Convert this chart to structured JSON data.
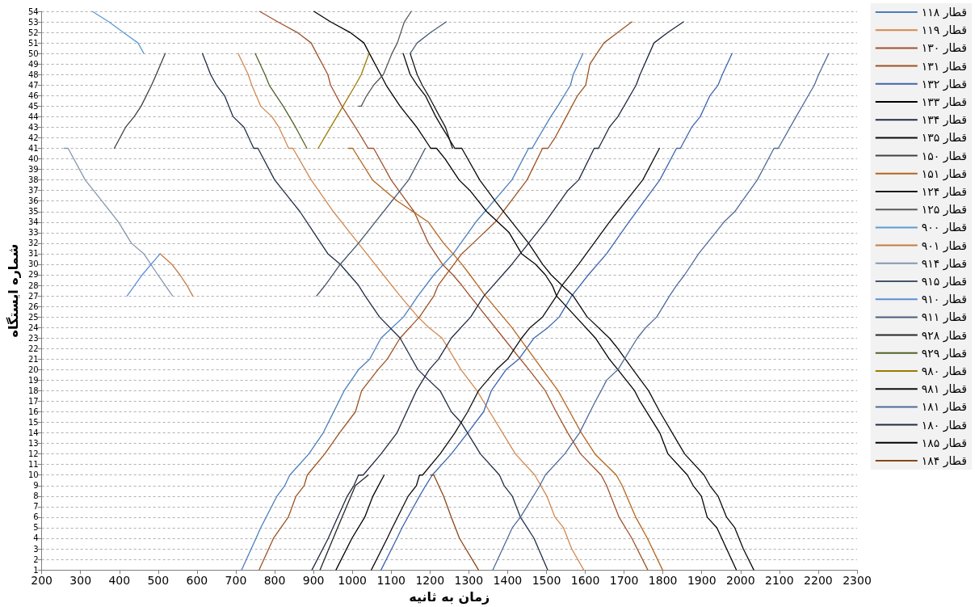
{
  "chart_data": {
    "type": "line",
    "xlabel": "زمان به ثانیه",
    "ylabel": "شماره ایستگاه",
    "xlim": [
      200,
      2300
    ],
    "xticks": [
      200,
      300,
      400,
      500,
      600,
      700,
      800,
      900,
      1000,
      1100,
      1200,
      1300,
      1400,
      1500,
      1600,
      1700,
      1800,
      1900,
      2000,
      2100,
      2200,
      2300
    ],
    "ylim": [
      1,
      54
    ],
    "yticks": [
      1,
      2,
      3,
      4,
      5,
      6,
      7,
      8,
      9,
      10,
      11,
      12,
      13,
      14,
      15,
      16,
      17,
      18,
      19,
      20,
      21,
      22,
      23,
      24,
      25,
      26,
      27,
      28,
      29,
      30,
      31,
      32,
      33,
      34,
      35,
      36,
      37,
      38,
      39,
      40,
      41,
      42,
      43,
      44,
      45,
      46,
      47,
      48,
      49,
      50,
      51,
      52,
      53,
      54
    ],
    "grid": "y",
    "legend": "right",
    "marker": "none",
    "line_style": "solid",
    "series": [
      {
        "name": "قطار ۱۱۸",
        "color": "#4a7ebb",
        "x": [
          715,
          752,
          764,
          806,
          826,
          839,
          888,
          925,
          979,
          1016,
          1045,
          1074,
          1132,
          1169,
          1210,
          1260,
          1318,
          1411,
          1454,
          1463,
          1511,
          1529,
          1562,
          1569,
          1594
        ],
        "values": [
          1,
          4,
          5,
          8,
          9,
          10,
          12,
          14,
          18,
          20,
          21,
          23,
          25,
          27,
          29,
          31,
          34,
          38,
          41,
          41,
          44,
          45,
          47,
          48,
          50
        ]
      },
      {
        "name": "قطار ۱۱۹",
        "color": "#d2884f",
        "x": [
          706,
          732,
          741,
          764,
          793,
          811,
          836,
          847,
          894,
          951,
          994,
          1037,
          1080,
          1123,
          1169,
          1197,
          1231,
          1280,
          1321,
          1354,
          1387,
          1420,
          1470,
          1501,
          1522,
          1544,
          1565,
          1596
        ],
        "values": [
          50,
          48,
          47,
          45,
          44,
          43,
          41,
          41,
          38,
          35,
          33,
          31,
          29,
          27,
          25,
          24,
          23,
          20,
          18,
          16,
          14,
          12,
          10,
          8,
          6,
          5,
          3,
          1
        ]
      },
      {
        "name": "قطار ۱۳۰",
        "color": "#a0522d",
        "x": [
          761,
          808,
          858,
          894,
          908,
          937,
          944,
          973,
          1008,
          1041,
          1055,
          1100,
          1159,
          1196,
          1232,
          1259,
          1282,
          1303,
          1411,
          1455,
          1497,
          1525,
          1555,
          1588,
          1641,
          1655,
          1687,
          1720,
          1761
        ],
        "values": [
          54,
          53,
          52,
          51,
          50,
          48,
          47,
          45,
          43,
          41,
          41,
          38,
          35,
          32,
          30,
          29,
          28,
          27,
          22,
          20,
          18,
          16,
          14,
          12,
          10,
          9,
          6,
          4,
          1
        ]
      },
      {
        "name": "قطار ۱۳۱",
        "color": "#9c5221",
        "x": [
          760,
          797,
          835,
          855,
          876,
          884,
          929,
          967,
          1008,
          1024,
          1066,
          1090,
          1123,
          1173,
          1210,
          1221,
          1282,
          1311,
          1368,
          1450,
          1490,
          1504,
          1522,
          1551,
          1580,
          1601,
          1612,
          1648,
          1684,
          1720
        ],
        "values": [
          1,
          4,
          6,
          8,
          9,
          10,
          12,
          14,
          16,
          18,
          20,
          21,
          23,
          25,
          27,
          28,
          31,
          32,
          34,
          38,
          41,
          41,
          42,
          44,
          46,
          47,
          49,
          51,
          52,
          53
        ]
      },
      {
        "name": "قطار ۱۳۲",
        "color": "#3c64ae",
        "x": [
          1074,
          1115,
          1128,
          1173,
          1189,
          1206,
          1255,
          1297,
          1338,
          1358,
          1396,
          1429,
          1468,
          1504,
          1533,
          1565,
          1608,
          1655,
          1712,
          1792,
          1835,
          1845,
          1874,
          1896,
          1921,
          1942,
          1953,
          1978
        ],
        "values": [
          1,
          4,
          5,
          8,
          9,
          10,
          12,
          14,
          16,
          18,
          20,
          21,
          23,
          24,
          25,
          27,
          29,
          31,
          34,
          38,
          41,
          41,
          43,
          44,
          46,
          47,
          48,
          50
        ]
      },
      {
        "name": "قطار ۱۳۳",
        "color": "#000000",
        "x": [
          901,
          944,
          994,
          1030,
          1044,
          1073,
          1087,
          1123,
          1166,
          1202,
          1217,
          1239,
          1275,
          1303,
          1346,
          1404,
          1436,
          1472,
          1497,
          1515,
          1526,
          1576,
          1626,
          1662,
          1684,
          1727,
          1741,
          1792,
          1813,
          1863,
          1878,
          1899,
          1914,
          1939,
          1964,
          1989
        ],
        "values": [
          54,
          53,
          52,
          51,
          50,
          48,
          47,
          45,
          43,
          41,
          41,
          40,
          38,
          37,
          35,
          33,
          31,
          30,
          29,
          28,
          27,
          25,
          23,
          21,
          20,
          18,
          17,
          14,
          12,
          10,
          9,
          8,
          6,
          5,
          3,
          1
        ]
      },
      {
        "name": "قطار ۱۳۴",
        "color": "#1f2d46",
        "x": [
          614,
          635,
          650,
          671,
          693,
          721,
          746,
          757,
          800,
          865,
          901,
          937,
          969,
          1016,
          1033,
          1070,
          1123,
          1169,
          1197,
          1226,
          1255,
          1280,
          1330,
          1379,
          1391,
          1412,
          1433,
          1468,
          1503
        ],
        "values": [
          50,
          48,
          47,
          46,
          44,
          43,
          41,
          41,
          38,
          35,
          33,
          31,
          30,
          28,
          27,
          25,
          23,
          20,
          19,
          18,
          16,
          15,
          12,
          10,
          9,
          8,
          6,
          4,
          1
        ]
      },
      {
        "name": "قطار ۱۳۵",
        "color": "#0a0a0a",
        "x": [
          1131,
          1149,
          1167,
          1188,
          1215,
          1231,
          1264,
          1282,
          1328,
          1368,
          1411,
          1454,
          1490,
          1512,
          1540,
          1569,
          1605,
          1662,
          1684,
          1723,
          1763,
          1792,
          1824,
          1856,
          1906,
          1921,
          1942,
          1964,
          1985,
          2007,
          2034
        ],
        "values": [
          50,
          48,
          47,
          46,
          44,
          43,
          41,
          41,
          38,
          36,
          34,
          32,
          30,
          29,
          28,
          27,
          25,
          23,
          22,
          20,
          18,
          16,
          14,
          12,
          10,
          9,
          8,
          6,
          5,
          3,
          1
        ]
      },
      {
        "name": "قطار ۱۵۰",
        "color": "#404040",
        "x": [
          387,
          416,
          438,
          456,
          483,
          495,
          518
        ],
        "values": [
          41,
          43,
          44,
          45,
          47,
          48,
          50
        ]
      },
      {
        "name": "قطار ۱۵۱",
        "color": "#b5651d",
        "x": [
          990,
          1001,
          1052,
          1116,
          1196,
          1235,
          1259,
          1282,
          1303,
          1323,
          1343,
          1411,
          1490,
          1530,
          1560,
          1590,
          1625,
          1680,
          1695,
          1730,
          1760,
          1799
        ],
        "values": [
          41,
          41,
          38,
          36,
          34,
          32,
          31,
          30,
          29,
          28,
          27,
          24,
          20,
          18,
          16,
          14,
          12,
          10,
          9,
          6,
          4,
          1
        ]
      },
      {
        "name": "قطار ۱۲۴",
        "color": "#1a1a1a",
        "x": [
          1149,
          1167,
          1180,
          1196,
          1225,
          1240,
          1258
        ],
        "values": [
          50,
          48,
          47,
          46,
          44,
          43,
          41
        ]
      },
      {
        "name": "قطار ۱۲۵",
        "color": "#595959",
        "x": [
          1016,
          1023,
          1037,
          1055,
          1080,
          1102,
          1116,
          1134,
          1152
        ],
        "values": [
          45,
          45,
          46,
          47,
          48,
          50,
          51,
          53,
          54
        ]
      },
      {
        "name": "قطار ۹۰۰",
        "color": "#5b9bd5",
        "x": [
          330,
          373,
          410,
          448,
          463
        ],
        "values": [
          54,
          53,
          52,
          51,
          50
        ]
      },
      {
        "name": "قطار ۹۰۱",
        "color": "#c47a44",
        "x": [
          505,
          535,
          556,
          574,
          589
        ],
        "values": [
          31,
          30,
          29,
          28,
          27
        ]
      },
      {
        "name": "قطار ۹۱۴",
        "color": "#8497b0",
        "x": [
          258,
          268,
          312,
          355,
          398,
          431,
          463,
          499,
          537
        ],
        "values": [
          41,
          41,
          38,
          36,
          34,
          32,
          31,
          29,
          27
        ]
      },
      {
        "name": "قطار ۹۱۵",
        "color": "#44546a",
        "x": [
          908,
          930,
          969,
          1016,
          1102,
          1145,
          1188
        ],
        "values": [
          27,
          28,
          30,
          32,
          36,
          38,
          41
        ]
      },
      {
        "name": "قطار ۹۱۰",
        "color": "#5b8fd8",
        "x": [
          420,
          459,
          505
        ],
        "values": [
          27,
          29,
          31
        ]
      },
      {
        "name": "قطار ۹۱۱",
        "color": "#4a5c7a",
        "x": [
          1149,
          1167,
          1202,
          1242
        ],
        "values": [
          50,
          51,
          52,
          53
        ]
      },
      {
        "name": "قطار ۹۲۸",
        "color": "#262626",
        "x": [
          917,
          962,
          1008,
          1041
        ],
        "values": [
          1,
          5,
          9,
          10
        ]
      },
      {
        "name": "قطار ۹۲۹",
        "color": "#4f6228",
        "x": [
          750,
          775,
          786,
          822,
          854,
          883
        ],
        "values": [
          50,
          48,
          47,
          45,
          43,
          41
        ]
      },
      {
        "name": "قطار ۹۸۰",
        "color": "#9c7a00",
        "x": [
          912,
          944,
          976,
          1008,
          1023,
          1043
        ],
        "values": [
          41,
          43,
          45,
          47,
          48,
          50
        ]
      },
      {
        "name": "قطار ۹۸۱",
        "color": "#0d0d0d",
        "x": [
          1049,
          1090,
          1103,
          1144,
          1165,
          1173,
          1181,
          1226,
          1264,
          1297,
          1325,
          1371,
          1400,
          1436,
          1458,
          1490,
          1526,
          1540,
          1583,
          1662,
          1748,
          1791
        ],
        "values": [
          1,
          4,
          5,
          8,
          9,
          10,
          10,
          12,
          14,
          16,
          18,
          20,
          21,
          23,
          24,
          25,
          27,
          28,
          30,
          34,
          38,
          41
        ]
      },
      {
        "name": "قطار ۱۸۱",
        "color": "#4f6a99",
        "x": [
          1362,
          1412,
          1433,
          1483,
          1497,
          1547,
          1585,
          1626,
          1641,
          1655,
          1684,
          1734,
          1756,
          1784,
          1817,
          1835,
          1856,
          1892,
          1957,
          1985,
          2043,
          2086,
          2097,
          2143,
          2190,
          2201,
          2227
        ],
        "values": [
          1,
          5,
          6,
          9,
          10,
          12,
          14,
          17,
          18,
          19,
          20,
          23,
          24,
          25,
          27,
          28,
          29,
          31,
          34,
          35,
          38,
          41,
          41,
          44,
          47,
          48,
          50
        ]
      },
      {
        "name": "قطار ۱۸۰",
        "color": "#1f2a40",
        "x": [
          896,
          938,
          950,
          987,
          1004,
          1016,
          1028,
          1074,
          1115,
          1165,
          1198,
          1222,
          1255,
          1305,
          1339,
          1411,
          1497,
          1555,
          1583,
          1623,
          1634,
          1662,
          1684,
          1731,
          1741,
          1777,
          1813,
          1853
        ],
        "values": [
          1,
          4,
          5,
          8,
          9,
          10,
          10,
          12,
          14,
          18,
          20,
          21,
          23,
          25,
          27,
          30,
          34,
          37,
          38,
          41,
          41,
          43,
          44,
          47,
          48,
          51,
          52,
          53
        ]
      },
      {
        "name": "قطار ۱۸۵",
        "color": "#000000",
        "x": [
          958,
          999,
          1032,
          1053,
          1082
        ],
        "values": [
          1,
          4,
          6,
          8,
          10
        ]
      },
      {
        "name": "قطار ۱۸۴",
        "color": "#8b4513",
        "x": [
          1202,
          1210,
          1235,
          1255,
          1276,
          1325
        ],
        "values": [
          10,
          10,
          8,
          6,
          4,
          1
        ]
      }
    ]
  }
}
